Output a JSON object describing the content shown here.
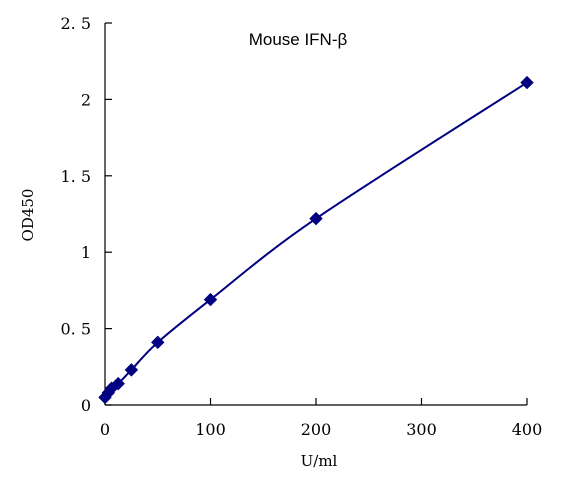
{
  "chart_data": {
    "type": "scatter",
    "title": "Mouse    IFN-β",
    "xlabel": "U/ml",
    "ylabel": "OD450",
    "xlim": [
      0,
      400
    ],
    "ylim": [
      0,
      2.5
    ],
    "x_ticks": [
      "0",
      "100",
      "200",
      "300",
      "400"
    ],
    "y_ticks": [
      "0",
      "0. 5",
      "1",
      "1. 5",
      "2",
      "2. 5"
    ],
    "grid": false,
    "legend": "none",
    "series": [
      {
        "x": [
          0,
          3.125,
          6.25,
          12.5,
          25,
          50,
          100,
          200,
          400
        ],
        "y": [
          0.05,
          0.08,
          0.11,
          0.14,
          0.23,
          0.41,
          0.69,
          1.22,
          2.11
        ],
        "marker": "diamond",
        "line": "smooth",
        "color": "#000080"
      }
    ]
  }
}
